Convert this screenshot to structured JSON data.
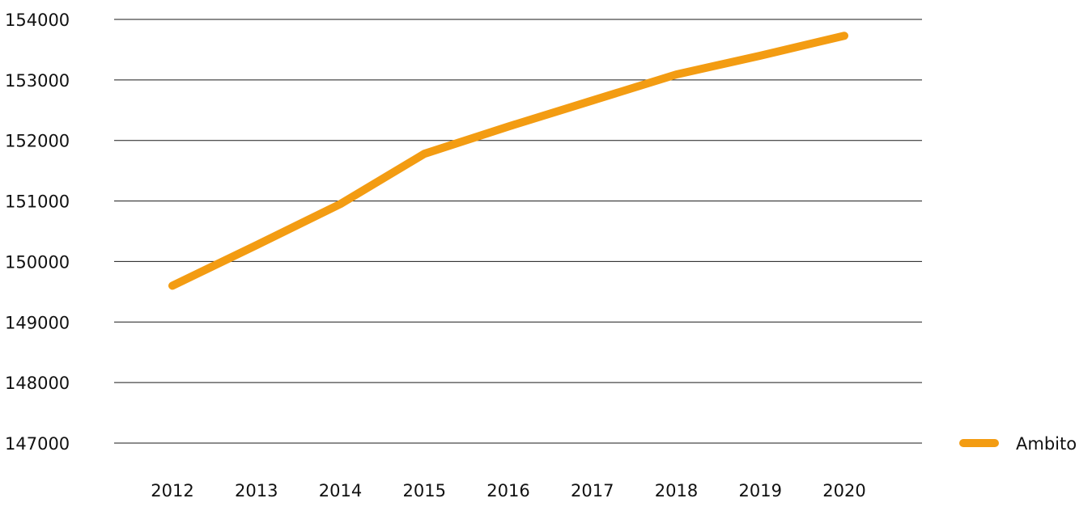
{
  "chart_data": {
    "type": "line",
    "title": "",
    "xlabel": "",
    "ylabel": "",
    "categories": [
      "2012",
      "2013",
      "2014",
      "2015",
      "2016",
      "2017",
      "2018",
      "2019",
      "2020"
    ],
    "series": [
      {
        "name": "Ambito",
        "color": "#F39C12",
        "values": [
          149600,
          150270,
          150950,
          151780,
          152230,
          152660,
          153090,
          153400,
          153730
        ]
      }
    ],
    "ylim": [
      147000,
      154000
    ],
    "yticks": [
      154000,
      153000,
      152000,
      151000,
      150000,
      149000,
      148000,
      147000
    ],
    "grid": "horizontal",
    "legend_position": "right"
  }
}
